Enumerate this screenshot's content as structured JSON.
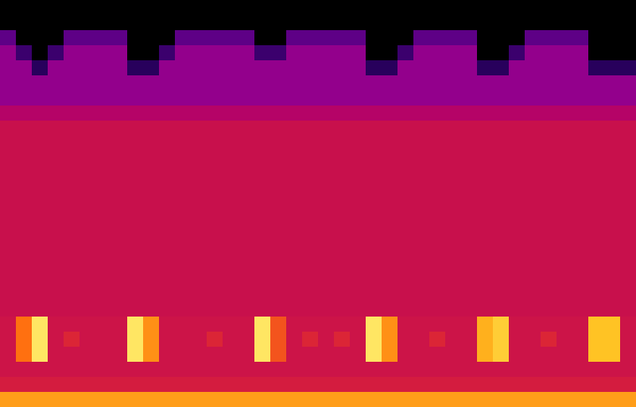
{
  "chart_data": {
    "type": "heatmap",
    "tick_labels": false,
    "color_range": [
      0,
      100
    ],
    "cells": [
      [
        0,
        0,
        0,
        0,
        0,
        0,
        0,
        0,
        0,
        0,
        0,
        0,
        0,
        0,
        0,
        0,
        0,
        0,
        0,
        0,
        0,
        0,
        0,
        0,
        0,
        0,
        0,
        0,
        0,
        0,
        0,
        0,
        0,
        0,
        0,
        0,
        0,
        0,
        0,
        0
      ],
      [
        0,
        0,
        0,
        0,
        0,
        0,
        0,
        0,
        0,
        0,
        0,
        0,
        0,
        0,
        0,
        0,
        0,
        0,
        0,
        0,
        0,
        0,
        0,
        0,
        0,
        0,
        0,
        0,
        0,
        0,
        0,
        0,
        0,
        0,
        0,
        0,
        0,
        0,
        0,
        0
      ],
      [
        20,
        0,
        0,
        0,
        20,
        20,
        20,
        20,
        0,
        0,
        0,
        20,
        20,
        20,
        20,
        20,
        0,
        0,
        20,
        20,
        20,
        20,
        20,
        0,
        0,
        0,
        20,
        20,
        20,
        20,
        0,
        0,
        0,
        20,
        20,
        20,
        20,
        0,
        0,
        0
      ],
      [
        30,
        15,
        0,
        15,
        30,
        30,
        30,
        30,
        0,
        0,
        15,
        30,
        30,
        30,
        30,
        30,
        15,
        15,
        30,
        30,
        30,
        30,
        30,
        0,
        0,
        15,
        30,
        30,
        30,
        30,
        0,
        0,
        15,
        30,
        30,
        30,
        30,
        0,
        0,
        0
      ],
      [
        30,
        30,
        12,
        30,
        30,
        30,
        30,
        30,
        12,
        12,
        30,
        30,
        30,
        30,
        30,
        30,
        30,
        30,
        30,
        30,
        30,
        30,
        30,
        12,
        12,
        30,
        30,
        30,
        30,
        30,
        12,
        12,
        30,
        30,
        30,
        30,
        30,
        12,
        12,
        12
      ],
      [
        30,
        30,
        30,
        30,
        30,
        30,
        30,
        30,
        30,
        30,
        30,
        30,
        30,
        30,
        30,
        30,
        30,
        30,
        30,
        30,
        30,
        30,
        30,
        30,
        30,
        30,
        30,
        30,
        30,
        30,
        30,
        30,
        30,
        30,
        30,
        30,
        30,
        30,
        30,
        30
      ],
      [
        30,
        30,
        30,
        30,
        30,
        30,
        30,
        30,
        30,
        30,
        30,
        30,
        30,
        30,
        30,
        30,
        30,
        30,
        30,
        30,
        30,
        30,
        30,
        30,
        30,
        30,
        30,
        30,
        30,
        30,
        30,
        30,
        30,
        30,
        30,
        30,
        30,
        30,
        30,
        30
      ],
      [
        40,
        40,
        40,
        40,
        40,
        40,
        40,
        40,
        40,
        40,
        40,
        40,
        40,
        40,
        40,
        40,
        40,
        40,
        40,
        40,
        40,
        40,
        40,
        40,
        40,
        40,
        40,
        40,
        40,
        40,
        40,
        40,
        40,
        40,
        40,
        40,
        40,
        40,
        40,
        40
      ],
      [
        50,
        50,
        50,
        50,
        50,
        50,
        50,
        50,
        50,
        50,
        50,
        50,
        50,
        50,
        50,
        50,
        50,
        50,
        50,
        50,
        50,
        50,
        50,
        50,
        50,
        50,
        50,
        50,
        50,
        50,
        50,
        50,
        50,
        50,
        50,
        50,
        50,
        50,
        50,
        50
      ],
      [
        50,
        50,
        50,
        50,
        50,
        50,
        50,
        50,
        50,
        50,
        50,
        50,
        50,
        50,
        50,
        50,
        50,
        50,
        50,
        50,
        50,
        50,
        50,
        50,
        50,
        50,
        50,
        50,
        50,
        50,
        50,
        50,
        50,
        50,
        50,
        50,
        50,
        50,
        50,
        50
      ],
      [
        50,
        50,
        50,
        50,
        50,
        50,
        50,
        50,
        50,
        50,
        50,
        50,
        50,
        50,
        50,
        50,
        50,
        50,
        50,
        50,
        50,
        50,
        50,
        50,
        50,
        50,
        50,
        50,
        50,
        50,
        50,
        50,
        50,
        50,
        50,
        50,
        50,
        50,
        50,
        50
      ],
      [
        50,
        50,
        50,
        50,
        50,
        50,
        50,
        50,
        50,
        50,
        50,
        50,
        50,
        50,
        50,
        50,
        50,
        50,
        50,
        50,
        50,
        50,
        50,
        50,
        50,
        50,
        50,
        50,
        50,
        50,
        50,
        50,
        50,
        50,
        50,
        50,
        50,
        50,
        50,
        50
      ],
      [
        50,
        50,
        50,
        50,
        50,
        50,
        50,
        50,
        50,
        50,
        50,
        50,
        50,
        50,
        50,
        50,
        50,
        50,
        50,
        50,
        50,
        50,
        50,
        50,
        50,
        50,
        50,
        50,
        50,
        50,
        50,
        50,
        50,
        50,
        50,
        50,
        50,
        50,
        50,
        50
      ],
      [
        50,
        50,
        50,
        50,
        50,
        50,
        50,
        50,
        50,
        50,
        50,
        50,
        50,
        50,
        50,
        50,
        50,
        50,
        50,
        50,
        50,
        50,
        50,
        50,
        50,
        50,
        50,
        50,
        50,
        50,
        50,
        50,
        50,
        50,
        50,
        50,
        50,
        50,
        50,
        50
      ],
      [
        50,
        50,
        50,
        50,
        50,
        50,
        50,
        50,
        50,
        50,
        50,
        50,
        50,
        50,
        50,
        50,
        50,
        50,
        50,
        50,
        50,
        50,
        50,
        50,
        50,
        50,
        50,
        50,
        50,
        50,
        50,
        50,
        50,
        50,
        50,
        50,
        50,
        50,
        50,
        50
      ],
      [
        50,
        50,
        50,
        50,
        50,
        50,
        50,
        50,
        50,
        50,
        50,
        50,
        50,
        50,
        50,
        50,
        50,
        50,
        50,
        50,
        50,
        50,
        50,
        50,
        50,
        50,
        50,
        50,
        50,
        50,
        50,
        50,
        50,
        50,
        50,
        50,
        50,
        50,
        50,
        50
      ],
      [
        50,
        50,
        50,
        50,
        50,
        50,
        50,
        50,
        50,
        50,
        50,
        50,
        50,
        50,
        50,
        50,
        50,
        50,
        50,
        50,
        50,
        50,
        50,
        50,
        50,
        50,
        50,
        50,
        50,
        50,
        50,
        50,
        50,
        50,
        50,
        50,
        50,
        50,
        50,
        50
      ],
      [
        50,
        50,
        50,
        50,
        50,
        50,
        50,
        50,
        50,
        50,
        50,
        50,
        50,
        50,
        50,
        50,
        50,
        50,
        50,
        50,
        50,
        50,
        50,
        50,
        50,
        50,
        50,
        50,
        50,
        50,
        50,
        50,
        50,
        50,
        50,
        50,
        50,
        50,
        50,
        50
      ],
      [
        50,
        50,
        50,
        50,
        50,
        50,
        50,
        50,
        50,
        50,
        50,
        50,
        50,
        50,
        50,
        50,
        50,
        50,
        50,
        50,
        50,
        50,
        50,
        50,
        50,
        50,
        50,
        50,
        50,
        50,
        50,
        50,
        50,
        50,
        50,
        50,
        50,
        50,
        50,
        50
      ],
      [
        50,
        50,
        50,
        50,
        50,
        50,
        50,
        50,
        50,
        50,
        50,
        50,
        50,
        50,
        50,
        50,
        50,
        50,
        50,
        50,
        50,
        50,
        50,
        50,
        50,
        50,
        50,
        50,
        50,
        50,
        50,
        50,
        50,
        50,
        50,
        50,
        50,
        50,
        50,
        50
      ],
      [
        50,
        50,
        50,
        50,
        50,
        50,
        50,
        50,
        50,
        50,
        50,
        50,
        50,
        50,
        50,
        50,
        50,
        50,
        50,
        50,
        50,
        50,
        50,
        50,
        50,
        50,
        50,
        50,
        50,
        50,
        50,
        50,
        50,
        50,
        50,
        50,
        50,
        50,
        50,
        50
      ],
      [
        52,
        75,
        95,
        52,
        52,
        52,
        52,
        52,
        95,
        80,
        52,
        52,
        52,
        52,
        52,
        52,
        95,
        70,
        52,
        52,
        52,
        52,
        52,
        95,
        80,
        52,
        52,
        52,
        52,
        52,
        85,
        90,
        52,
        52,
        52,
        52,
        52,
        88,
        88,
        52
      ],
      [
        52,
        75,
        95,
        52,
        60,
        52,
        52,
        52,
        95,
        80,
        52,
        52,
        52,
        60,
        52,
        52,
        95,
        70,
        52,
        60,
        52,
        60,
        52,
        95,
        80,
        52,
        52,
        60,
        52,
        52,
        85,
        90,
        52,
        52,
        60,
        52,
        52,
        88,
        88,
        52
      ],
      [
        52,
        75,
        95,
        52,
        52,
        52,
        52,
        52,
        95,
        80,
        52,
        52,
        52,
        52,
        52,
        52,
        95,
        70,
        52,
        52,
        52,
        52,
        52,
        95,
        80,
        52,
        52,
        52,
        52,
        52,
        85,
        90,
        52,
        52,
        52,
        52,
        52,
        88,
        88,
        52
      ],
      [
        52,
        52,
        52,
        52,
        52,
        52,
        52,
        52,
        52,
        52,
        52,
        52,
        52,
        52,
        52,
        52,
        52,
        52,
        52,
        52,
        52,
        52,
        52,
        52,
        52,
        52,
        52,
        52,
        52,
        52,
        52,
        52,
        52,
        52,
        52,
        52,
        52,
        52,
        52,
        52
      ],
      [
        56,
        56,
        56,
        56,
        56,
        56,
        56,
        56,
        56,
        56,
        56,
        56,
        56,
        56,
        56,
        56,
        56,
        56,
        56,
        56,
        56,
        56,
        56,
        56,
        56,
        56,
        56,
        56,
        56,
        56,
        56,
        56,
        56,
        56,
        56,
        56,
        56,
        56,
        56,
        56
      ],
      [
        82,
        82,
        82,
        82,
        82,
        82,
        82,
        82,
        82,
        82,
        82,
        82,
        82,
        82,
        82,
        82,
        82,
        82,
        82,
        82,
        82,
        82,
        82,
        82,
        82,
        82,
        82,
        82,
        82,
        82,
        82,
        82,
        82,
        82,
        82,
        82,
        82,
        82,
        82,
        82
      ]
    ]
  }
}
